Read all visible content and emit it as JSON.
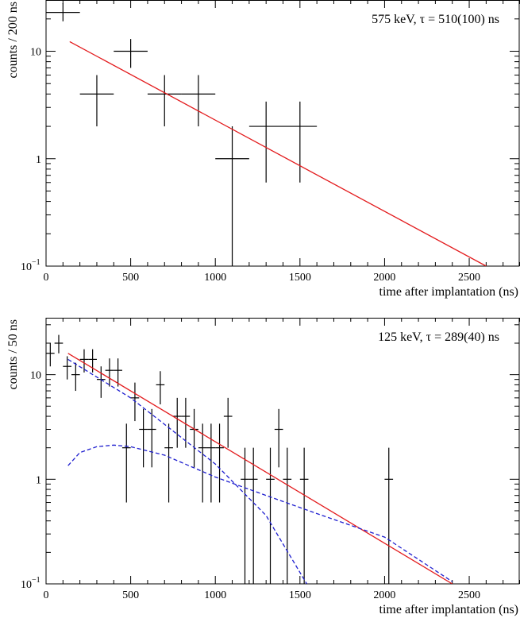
{
  "chart_data": [
    {
      "type": "scatter",
      "title": "",
      "annotation": "575 keV, τ = 510(100) ns",
      "xlabel": "time after implantation (ns)",
      "ylabel": "counts / 200 ns",
      "xlim": [
        0,
        2800
      ],
      "ylim": [
        0.1,
        30
      ],
      "yscale": "log",
      "grid": false,
      "xticks": [
        0,
        500,
        1000,
        1500,
        2000,
        2500
      ],
      "xtick_labels": [
        "0",
        "500",
        "1000",
        "1500",
        "2000",
        "2500"
      ],
      "yticks": [
        1,
        10
      ],
      "ytick_labels": [
        "1",
        "10"
      ],
      "ybottom_label": {
        "base": "10",
        "exp": "−1"
      },
      "series": [
        {
          "kind": "errorbar",
          "color": "#000000",
          "points": [
            {
              "x": 100,
              "y": 23,
              "xerr": 100,
              "ylo": 19,
              "yhi": 28
            },
            {
              "x": 300,
              "y": 4,
              "xerr": 100,
              "ylo": 2,
              "yhi": 6
            },
            {
              "x": 500,
              "y": 10,
              "xerr": 100,
              "ylo": 7,
              "yhi": 13
            },
            {
              "x": 700,
              "y": 4,
              "xerr": 100,
              "ylo": 2,
              "yhi": 6
            },
            {
              "x": 900,
              "y": 4,
              "xerr": 100,
              "ylo": 2,
              "yhi": 6
            },
            {
              "x": 1100,
              "y": 1,
              "xerr": 100,
              "ylo": 0.1,
              "yhi": 2
            },
            {
              "x": 1300,
              "y": 2,
              "xerr": 100,
              "ylo": 0.6,
              "yhi": 3.4
            },
            {
              "x": 1500,
              "y": 2,
              "xerr": 100,
              "ylo": 0.6,
              "yhi": 3.4
            }
          ]
        },
        {
          "kind": "function",
          "color": "#e31a1c",
          "dash": false,
          "points": [
            [
              140,
              12.3
            ],
            [
              2600,
              0.1
            ]
          ]
        }
      ]
    },
    {
      "type": "scatter",
      "title": "",
      "annotation": "125 keV, τ = 289(40) ns",
      "xlabel": "time after implantation (ns)",
      "ylabel": "counts / 50 ns",
      "xlim": [
        0,
        2800
      ],
      "ylim": [
        0.1,
        35
      ],
      "yscale": "log",
      "grid": false,
      "xticks": [
        0,
        500,
        1000,
        1500,
        2000,
        2500
      ],
      "xtick_labels": [
        "0",
        "500",
        "1000",
        "1500",
        "2000",
        "2500"
      ],
      "yticks": [
        1,
        10
      ],
      "ytick_labels": [
        "1",
        "10"
      ],
      "ybottom_label": {
        "base": "10",
        "exp": "−1"
      },
      "series": [
        {
          "kind": "errorbar",
          "color": "#000000",
          "points": [
            {
              "x": 25,
              "y": 16,
              "xerr": 25,
              "ylo": 12,
              "yhi": 20
            },
            {
              "x": 75,
              "y": 20,
              "xerr": 25,
              "ylo": 16,
              "yhi": 24
            },
            {
              "x": 125,
              "y": 12,
              "xerr": 25,
              "ylo": 9,
              "yhi": 15
            },
            {
              "x": 175,
              "y": 10,
              "xerr": 25,
              "ylo": 7,
              "yhi": 13
            },
            {
              "x": 225,
              "y": 14,
              "xerr": 25,
              "ylo": 10.5,
              "yhi": 17.5
            },
            {
              "x": 275,
              "y": 14,
              "xerr": 25,
              "ylo": 10.5,
              "yhi": 17.5
            },
            {
              "x": 325,
              "y": 9,
              "xerr": 25,
              "ylo": 6,
              "yhi": 12
            },
            {
              "x": 375,
              "y": 11,
              "xerr": 25,
              "ylo": 7.7,
              "yhi": 14.3
            },
            {
              "x": 425,
              "y": 11,
              "xerr": 25,
              "ylo": 7.7,
              "yhi": 14.3
            },
            {
              "x": 475,
              "y": 2,
              "xerr": 25,
              "ylo": 0.6,
              "yhi": 3.4
            },
            {
              "x": 525,
              "y": 6,
              "xerr": 25,
              "ylo": 3.6,
              "yhi": 8.4
            },
            {
              "x": 575,
              "y": 3,
              "xerr": 25,
              "ylo": 1.3,
              "yhi": 4.7
            },
            {
              "x": 625,
              "y": 3,
              "xerr": 25,
              "ylo": 1.3,
              "yhi": 4.7
            },
            {
              "x": 675,
              "y": 8,
              "xerr": 25,
              "ylo": 5.2,
              "yhi": 10.8
            },
            {
              "x": 725,
              "y": 2,
              "xerr": 25,
              "ylo": 0.6,
              "yhi": 3.4
            },
            {
              "x": 775,
              "y": 4,
              "xerr": 25,
              "ylo": 2,
              "yhi": 6
            },
            {
              "x": 825,
              "y": 4,
              "xerr": 25,
              "ylo": 2,
              "yhi": 6
            },
            {
              "x": 875,
              "y": 3,
              "xerr": 25,
              "ylo": 1.3,
              "yhi": 4.7
            },
            {
              "x": 925,
              "y": 2,
              "xerr": 25,
              "ylo": 0.6,
              "yhi": 3.4
            },
            {
              "x": 975,
              "y": 2,
              "xerr": 25,
              "ylo": 0.6,
              "yhi": 3.4
            },
            {
              "x": 1025,
              "y": 2,
              "xerr": 25,
              "ylo": 0.6,
              "yhi": 3.4
            },
            {
              "x": 1075,
              "y": 4,
              "xerr": 25,
              "ylo": 2,
              "yhi": 6
            },
            {
              "x": 1175,
              "y": 1,
              "xerr": 25,
              "ylo": 0.1,
              "yhi": 2
            },
            {
              "x": 1225,
              "y": 1,
              "xerr": 25,
              "ylo": 0.1,
              "yhi": 2
            },
            {
              "x": 1325,
              "y": 1,
              "xerr": 25,
              "ylo": 0.1,
              "yhi": 2
            },
            {
              "x": 1375,
              "y": 3,
              "xerr": 25,
              "ylo": 1.3,
              "yhi": 4.7
            },
            {
              "x": 1425,
              "y": 1,
              "xerr": 25,
              "ylo": 0.1,
              "yhi": 2
            },
            {
              "x": 1525,
              "y": 1,
              "xerr": 25,
              "ylo": 0.1,
              "yhi": 2
            },
            {
              "x": 2025,
              "y": 1,
              "xerr": 25,
              "ylo": 0.1,
              "yhi": 2
            }
          ]
        },
        {
          "kind": "function",
          "color": "#e31a1c",
          "dash": false,
          "points": [
            [
              130,
              16
            ],
            [
              2400,
              0.1
            ]
          ]
        },
        {
          "kind": "function",
          "color": "#1f1fcf",
          "dash": true,
          "points": [
            [
              130,
              14
            ],
            [
              500,
              6
            ],
            [
              1000,
              1.4
            ],
            [
              1300,
              0.45
            ],
            [
              1540,
              0.1
            ]
          ]
        },
        {
          "kind": "function",
          "color": "#1f1fcf",
          "dash": true,
          "points": [
            [
              130,
              1.35
            ],
            [
              200,
              1.8
            ],
            [
              300,
              2.05
            ],
            [
              400,
              2.12
            ],
            [
              500,
              2.05
            ],
            [
              700,
              1.7
            ],
            [
              1000,
              1.05
            ],
            [
              1300,
              0.7
            ],
            [
              1600,
              0.47
            ],
            [
              2000,
              0.28
            ],
            [
              2400,
              0.105
            ]
          ]
        }
      ]
    }
  ]
}
